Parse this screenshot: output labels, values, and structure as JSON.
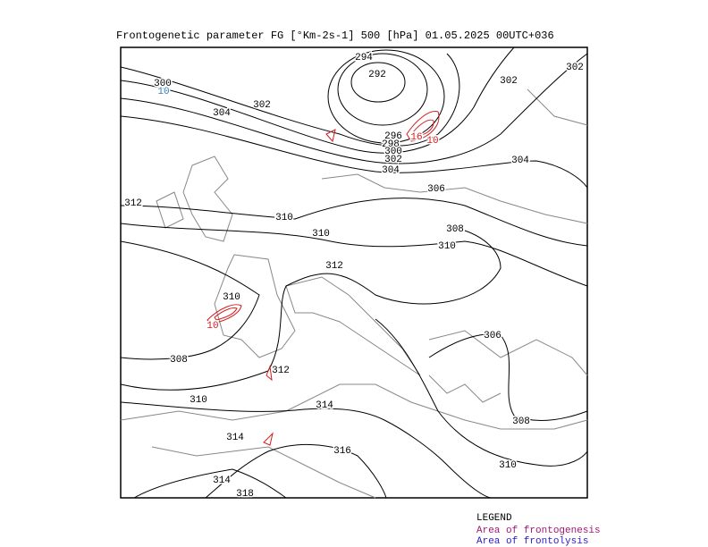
{
  "header": {
    "title": "Frontogenetic parameter   FG [°Km-2s-1] 500 [hPa] 01.05.2025 00UTC+036"
  },
  "contour_labels": [
    "294",
    "292",
    "302",
    "302",
    "300",
    "10",
    "304",
    "302",
    "296",
    "298",
    "300",
    "302",
    "304",
    "16",
    "10",
    "304",
    "306",
    "312",
    "310",
    "310",
    "308",
    "310",
    "312",
    "310",
    "10",
    "306",
    "308",
    "312",
    "310",
    "314",
    "308",
    "314",
    "316",
    "310",
    "314",
    "318"
  ],
  "legend": {
    "title": "LEGEND",
    "items": [
      "Area of frontogenesis",
      "Area of frontolysis"
    ]
  }
}
